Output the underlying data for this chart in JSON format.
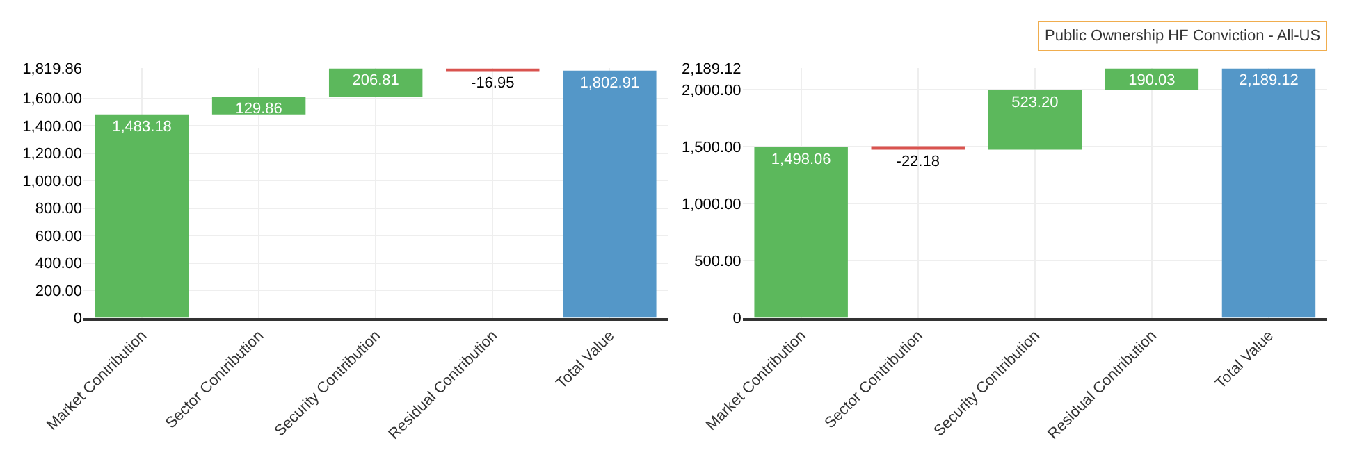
{
  "chart_data": [
    {
      "type": "bar",
      "categories": [
        "Market Contribution",
        "Sector Contribution",
        "Security Contribution",
        "Residual Contribution",
        "Total Value"
      ],
      "values": [
        1483.18,
        129.86,
        206.81,
        -16.95,
        1802.91
      ],
      "base": [
        0,
        1483.18,
        1613.04,
        1819.86,
        0
      ],
      "colors": [
        "#5cb85c",
        "#5cb85c",
        "#5cb85c",
        "#d9534f",
        "#5497c8"
      ],
      "ylim": [
        0,
        1819.86
      ],
      "yticks": [
        0,
        {
          "value": 200,
          "label": "200.00"
        },
        {
          "value": 400,
          "label": "400.00"
        },
        {
          "value": 600,
          "label": "600.00"
        },
        {
          "value": 800,
          "label": "800.00"
        },
        {
          "value": 1000,
          "label": "1,000.00"
        },
        {
          "value": 1200,
          "label": "1,200.00"
        },
        {
          "value": 1400,
          "label": "1,400.00"
        },
        {
          "value": 1600,
          "label": "1,600.00"
        },
        {
          "value": 1819.86,
          "label": "1,819.86"
        }
      ],
      "value_labels": [
        "1,483.18",
        "129.86",
        "206.81",
        "-16.95",
        "1,802.91"
      ],
      "grid": true
    },
    {
      "type": "bar",
      "title": "Public Ownership HF Conviction - All-US",
      "categories": [
        "Market Contribution",
        "Sector Contribution",
        "Security Contribution",
        "Residual Contribution",
        "Total Value"
      ],
      "values": [
        1498.06,
        -22.18,
        523.2,
        190.03,
        2189.12
      ],
      "base": [
        0,
        1498.06,
        1475.88,
        1999.08,
        0
      ],
      "colors": [
        "#5cb85c",
        "#d9534f",
        "#5cb85c",
        "#5cb85c",
        "#5497c8"
      ],
      "ylim": [
        0,
        2189.12
      ],
      "yticks": [
        0,
        {
          "value": 500,
          "label": "500.00"
        },
        {
          "value": 1000,
          "label": "1,000.00"
        },
        {
          "value": 1500,
          "label": "1,500.00"
        },
        {
          "value": 2000,
          "label": "2,000.00"
        },
        {
          "value": 2189.12,
          "label": "2,189.12"
        }
      ],
      "value_labels": [
        "1,498.06",
        "-22.18",
        "523.20",
        "190.03",
        "2,189.12"
      ],
      "grid": true
    }
  ]
}
